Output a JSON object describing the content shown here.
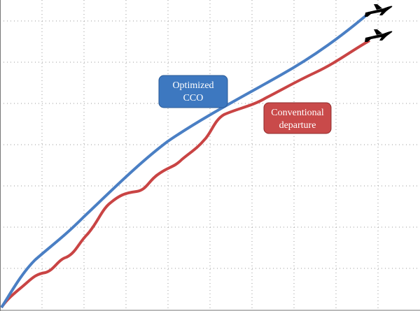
{
  "labels": {
    "optimized": [
      "Optimized",
      "CCO"
    ],
    "conventional": [
      "Conventional",
      "departure"
    ]
  }
}
